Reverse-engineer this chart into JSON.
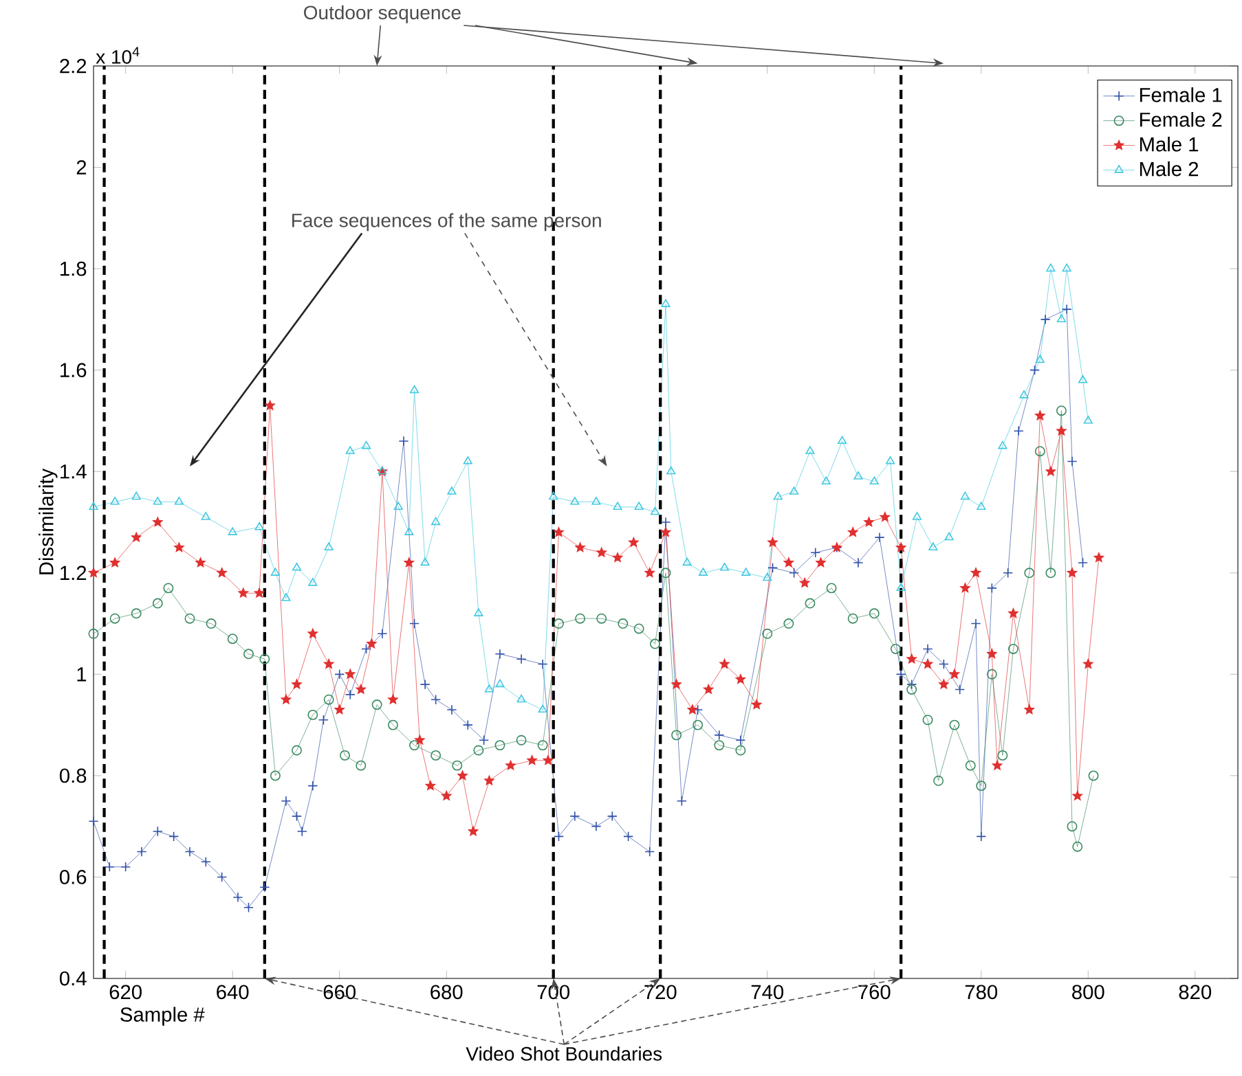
{
  "chart_data": {
    "type": "line",
    "xlabel": "Sample #",
    "ylabel": "Dissimilarity",
    "xlim": [
      614,
      828
    ],
    "ylim": [
      0.4,
      2.2
    ],
    "xticks": [
      620,
      640,
      660,
      680,
      700,
      720,
      740,
      760,
      780,
      800,
      820
    ],
    "yticks": [
      0.4,
      0.6,
      0.8,
      1,
      1.2,
      1.4,
      1.6,
      1.8,
      2,
      2.2
    ],
    "grid": false,
    "legend": "top right",
    "line_style": "solid",
    "series": [
      {
        "name": "Female 1",
        "color": "#3050a8",
        "marker": "cross",
        "x": [
          614,
          617,
          620,
          623,
          626,
          629,
          632,
          635,
          638,
          641,
          643,
          646,
          650,
          652,
          653,
          655,
          657,
          660,
          662,
          665,
          668,
          672,
          674,
          676,
          678,
          681,
          684,
          687,
          690,
          694,
          698,
          701,
          704,
          708,
          711,
          714,
          718,
          721,
          724,
          727,
          731,
          735,
          741,
          745,
          749,
          753,
          757,
          761,
          765,
          767,
          770,
          773,
          776,
          779,
          780,
          782,
          785,
          787,
          790,
          792,
          796,
          797,
          799
        ],
        "values": [
          0.71,
          0.62,
          0.62,
          0.65,
          0.69,
          0.68,
          0.65,
          0.63,
          0.6,
          0.56,
          0.54,
          0.58,
          0.75,
          0.72,
          0.69,
          0.78,
          0.91,
          1.0,
          0.96,
          1.05,
          1.08,
          1.46,
          1.1,
          0.98,
          0.95,
          0.93,
          0.9,
          0.87,
          1.04,
          1.03,
          1.02,
          0.68,
          0.72,
          0.7,
          0.72,
          0.68,
          0.65,
          1.3,
          0.75,
          0.93,
          0.88,
          0.87,
          1.21,
          1.2,
          1.24,
          1.25,
          1.22,
          1.27,
          1.0,
          0.98,
          1.05,
          1.02,
          0.97,
          1.1,
          0.68,
          1.17,
          1.2,
          1.48,
          1.6,
          1.7,
          1.72,
          1.42,
          1.22
        ]
      },
      {
        "name": "Female 2",
        "color": "#3a8a60",
        "marker": "circle",
        "x": [
          614,
          618,
          622,
          626,
          628,
          632,
          636,
          640,
          643,
          646,
          648,
          652,
          655,
          658,
          661,
          664,
          667,
          670,
          674,
          678,
          682,
          686,
          690,
          694,
          698,
          701,
          705,
          709,
          713,
          716,
          719,
          721,
          723,
          727,
          731,
          735,
          740,
          744,
          748,
          752,
          756,
          760,
          764,
          767,
          770,
          772,
          775,
          778,
          780,
          782,
          784,
          786,
          789,
          791,
          793,
          795,
          797,
          798,
          801
        ],
        "values": [
          1.08,
          1.11,
          1.12,
          1.14,
          1.17,
          1.11,
          1.1,
          1.07,
          1.04,
          1.03,
          0.8,
          0.85,
          0.92,
          0.95,
          0.84,
          0.82,
          0.94,
          0.9,
          0.86,
          0.84,
          0.82,
          0.85,
          0.86,
          0.87,
          0.86,
          1.1,
          1.11,
          1.11,
          1.1,
          1.09,
          1.06,
          1.2,
          0.88,
          0.9,
          0.86,
          0.85,
          1.08,
          1.1,
          1.14,
          1.17,
          1.11,
          1.12,
          1.05,
          0.97,
          0.91,
          0.79,
          0.9,
          0.82,
          0.78,
          1.0,
          0.84,
          1.05,
          1.2,
          1.44,
          1.2,
          1.52,
          0.7,
          0.66,
          0.8
        ]
      },
      {
        "name": "Male 1",
        "color": "#e03030",
        "marker": "star",
        "x": [
          614,
          618,
          622,
          626,
          630,
          634,
          638,
          642,
          645,
          647,
          650,
          652,
          655,
          658,
          660,
          662,
          664,
          666,
          668,
          670,
          673,
          675,
          677,
          680,
          683,
          685,
          688,
          692,
          696,
          699,
          701,
          705,
          709,
          712,
          715,
          718,
          721,
          723,
          726,
          729,
          732,
          735,
          738,
          741,
          744,
          747,
          750,
          753,
          756,
          759,
          762,
          765,
          767,
          770,
          773,
          775,
          777,
          779,
          782,
          783,
          786,
          789,
          791,
          793,
          795,
          797,
          798,
          800,
          802
        ],
        "values": [
          1.2,
          1.22,
          1.27,
          1.3,
          1.25,
          1.22,
          1.2,
          1.16,
          1.16,
          1.53,
          0.95,
          0.98,
          1.08,
          1.02,
          0.93,
          1.0,
          0.97,
          1.06,
          1.4,
          0.95,
          1.22,
          0.87,
          0.78,
          0.76,
          0.8,
          0.69,
          0.79,
          0.82,
          0.83,
          0.83,
          1.28,
          1.25,
          1.24,
          1.23,
          1.26,
          1.2,
          1.28,
          0.98,
          0.93,
          0.97,
          1.02,
          0.99,
          0.94,
          1.26,
          1.22,
          1.18,
          1.22,
          1.25,
          1.28,
          1.3,
          1.31,
          1.25,
          1.03,
          1.02,
          0.98,
          1.0,
          1.17,
          1.2,
          1.04,
          0.82,
          1.12,
          0.93,
          1.51,
          1.4,
          1.48,
          1.2,
          0.76,
          1.02,
          1.23
        ]
      },
      {
        "name": "Male 2",
        "color": "#40c8e0",
        "marker": "triangle",
        "x": [
          614,
          618,
          622,
          626,
          630,
          635,
          640,
          645,
          648,
          650,
          652,
          655,
          658,
          662,
          665,
          668,
          671,
          673,
          674,
          676,
          678,
          681,
          684,
          686,
          688,
          690,
          694,
          698,
          700,
          704,
          708,
          712,
          716,
          719,
          721,
          722,
          725,
          728,
          732,
          736,
          740,
          742,
          745,
          748,
          751,
          754,
          757,
          760,
          763,
          765,
          768,
          771,
          774,
          777,
          780,
          784,
          788,
          791,
          793,
          795,
          796,
          799,
          800
        ],
        "values": [
          1.33,
          1.34,
          1.35,
          1.34,
          1.34,
          1.31,
          1.28,
          1.29,
          1.2,
          1.15,
          1.21,
          1.18,
          1.25,
          1.44,
          1.45,
          1.4,
          1.33,
          1.28,
          1.56,
          1.22,
          1.3,
          1.36,
          1.42,
          1.12,
          0.97,
          0.98,
          0.95,
          0.93,
          1.35,
          1.34,
          1.34,
          1.33,
          1.33,
          1.32,
          1.73,
          1.4,
          1.22,
          1.2,
          1.21,
          1.2,
          1.19,
          1.35,
          1.36,
          1.44,
          1.38,
          1.46,
          1.39,
          1.38,
          1.42,
          1.17,
          1.31,
          1.25,
          1.27,
          1.35,
          1.33,
          1.45,
          1.55,
          1.62,
          1.8,
          1.7,
          1.8,
          1.58,
          1.5
        ]
      }
    ],
    "ref_lines": [
      {
        "axis": "x",
        "value": 616,
        "color": "#000000",
        "line_style": "dashed"
      },
      {
        "axis": "x",
        "value": 646,
        "color": "#000000",
        "line_style": "dashed"
      },
      {
        "axis": "x",
        "value": 700,
        "color": "#000000",
        "line_style": "dashed"
      },
      {
        "axis": "x",
        "value": 720,
        "color": "#000000",
        "line_style": "dashed"
      },
      {
        "axis": "x",
        "value": 765,
        "color": "#000000",
        "line_style": "dashed"
      }
    ],
    "annotations": [
      "x 10$^{4}$",
      "Outdoor sequence",
      "Face sequences of the same person",
      "Video Shot Boundaries"
    ]
  }
}
